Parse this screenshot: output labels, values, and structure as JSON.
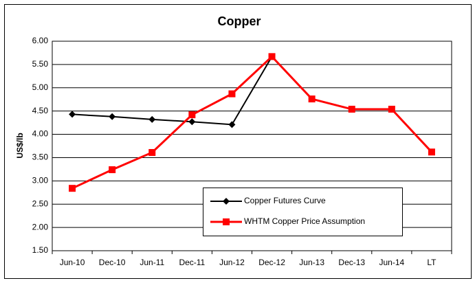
{
  "chart_data": {
    "type": "line",
    "title": "Copper",
    "y_label": "US$/lb",
    "categories": [
      "Jun-10",
      "Dec-10",
      "Jun-11",
      "Dec-11",
      "Jun-12",
      "Dec-12",
      "Jun-13",
      "Dec-13",
      "Jun-14",
      "LT"
    ],
    "series": [
      {
        "name": "Copper Futures Curve",
        "color": "#000000",
        "marker": "diamond",
        "values": [
          4.43,
          4.38,
          4.32,
          4.27,
          4.21,
          5.67,
          null,
          null,
          null,
          null
        ]
      },
      {
        "name": "WHTM Copper Price Assumption",
        "color": "#ff0000",
        "marker": "square",
        "values": [
          2.84,
          3.24,
          3.61,
          4.42,
          4.87,
          5.67,
          4.76,
          4.54,
          4.54,
          3.62
        ]
      }
    ],
    "ylim": [
      1.5,
      6.0
    ],
    "yticks": [
      {
        "value": 1.5,
        "label": "1.50"
      },
      {
        "value": 2.0,
        "label": "2.00"
      },
      {
        "value": 2.5,
        "label": "2.50"
      },
      {
        "value": 3.0,
        "label": "3.00"
      },
      {
        "value": 3.5,
        "label": "3.50"
      },
      {
        "value": 4.0,
        "label": "4.00"
      },
      {
        "value": 4.5,
        "label": "4.50"
      },
      {
        "value": 5.0,
        "label": "5.00"
      },
      {
        "value": 5.5,
        "label": "5.50"
      },
      {
        "value": 6.0,
        "label": "6.00"
      }
    ],
    "grid": true
  }
}
